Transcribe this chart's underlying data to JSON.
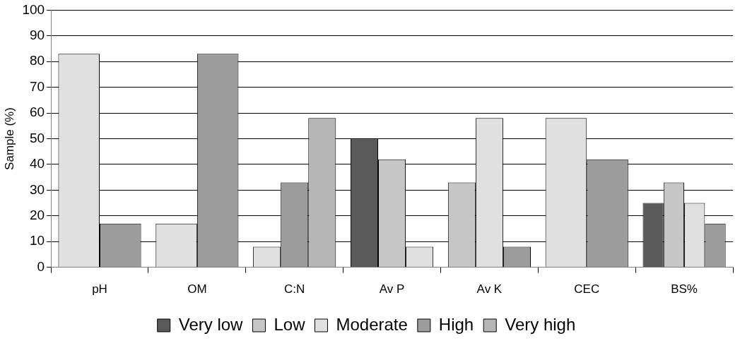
{
  "chart_data": {
    "type": "bar",
    "ylabel": "Sample (%)",
    "categories": [
      "pH",
      "OM",
      "C:N",
      "Av P",
      "Av K",
      "CEC",
      "BS%"
    ],
    "series": [
      {
        "name": "Very low",
        "color": "#5a5a5a",
        "values": [
          null,
          null,
          null,
          50,
          null,
          null,
          25
        ]
      },
      {
        "name": "Low",
        "color": "#c6c6c6",
        "values": [
          null,
          null,
          null,
          42,
          33,
          null,
          33
        ]
      },
      {
        "name": "Moderate",
        "color": "#e0e0e0",
        "values": [
          83,
          17,
          8,
          8,
          58,
          58,
          25
        ]
      },
      {
        "name": "High",
        "color": "#9c9c9c",
        "values": [
          17,
          83,
          33,
          null,
          8,
          42,
          17
        ]
      },
      {
        "name": "Very high",
        "color": "#b6b6b6",
        "values": [
          null,
          null,
          58,
          null,
          null,
          null,
          null
        ]
      }
    ],
    "ylim": [
      0,
      100
    ],
    "yticks": [
      0,
      10,
      20,
      30,
      40,
      50,
      60,
      70,
      80,
      90,
      100
    ],
    "grid": "y",
    "legend": "bottom"
  }
}
